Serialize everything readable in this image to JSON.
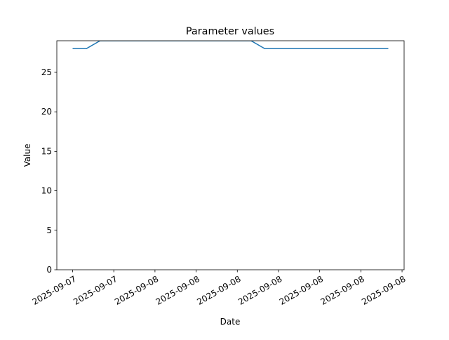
{
  "chart_data": {
    "type": "line",
    "title": "Parameter values",
    "xlabel": "Date",
    "ylabel": "Value",
    "x": [
      0,
      1,
      2,
      3,
      4,
      5,
      6,
      7,
      8,
      9,
      10,
      11,
      12,
      13,
      14,
      15,
      16,
      17,
      18,
      19,
      20,
      21,
      22,
      23
    ],
    "series": [
      {
        "name": "Value",
        "color": "#1f77b4",
        "values": [
          28,
          28,
          29,
          29,
          29,
          29,
          29,
          29,
          29,
          29,
          29,
          29,
          29,
          29,
          28,
          28,
          28,
          28,
          28,
          28,
          28,
          28,
          28,
          28
        ]
      }
    ],
    "xlim": [
      -1.15,
      24.15
    ],
    "xticks": [
      {
        "value": 0,
        "label": "2025-09-07"
      },
      {
        "value": 3,
        "label": "2025-09-07"
      },
      {
        "value": 6,
        "label": "2025-09-08"
      },
      {
        "value": 9,
        "label": "2025-09-08"
      },
      {
        "value": 12,
        "label": "2025-09-08"
      },
      {
        "value": 15,
        "label": "2025-09-08"
      },
      {
        "value": 18,
        "label": "2025-09-08"
      },
      {
        "value": 21,
        "label": "2025-09-08"
      },
      {
        "value": 24,
        "label": "2025-09-08"
      }
    ],
    "ylim": [
      0,
      29
    ],
    "yticks": [
      0,
      5,
      10,
      15,
      20,
      25
    ]
  }
}
